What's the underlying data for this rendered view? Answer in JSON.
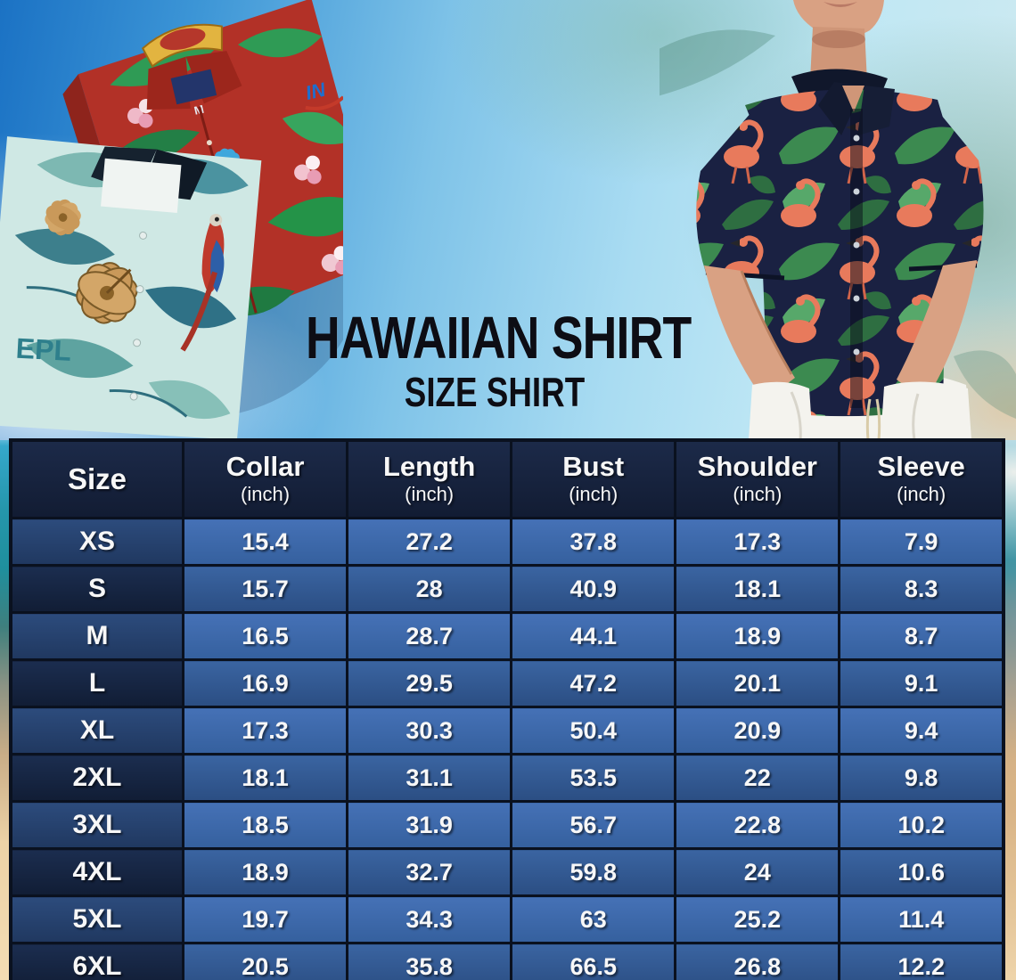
{
  "title": "HAWAIIAN SHIRT",
  "subtitle": "SIZE SHIRT",
  "table": {
    "size_column_header": "Size",
    "unit": "(inch)",
    "measure_columns": [
      "Collar",
      "Length",
      "Bust",
      "Shoulder",
      "Sleeve"
    ],
    "rows": [
      {
        "size": "XS",
        "values": [
          "15.4",
          "27.2",
          "37.8",
          "17.3",
          "7.9"
        ]
      },
      {
        "size": "S",
        "values": [
          "15.7",
          "28",
          "40.9",
          "18.1",
          "8.3"
        ]
      },
      {
        "size": "M",
        "values": [
          "16.5",
          "28.7",
          "44.1",
          "18.9",
          "8.7"
        ]
      },
      {
        "size": "L",
        "values": [
          "16.9",
          "29.5",
          "47.2",
          "20.1",
          "9.1"
        ]
      },
      {
        "size": "XL",
        "values": [
          "17.3",
          "30.3",
          "50.4",
          "20.9",
          "9.4"
        ]
      },
      {
        "size": "2XL",
        "values": [
          "18.1",
          "31.1",
          "53.5",
          "22",
          "9.8"
        ]
      },
      {
        "size": "3XL",
        "values": [
          "18.5",
          "31.9",
          "56.7",
          "22.8",
          "10.2"
        ]
      },
      {
        "size": "4XL",
        "values": [
          "18.9",
          "32.7",
          "59.8",
          "24",
          "10.6"
        ]
      },
      {
        "size": "5XL",
        "values": [
          "19.7",
          "34.3",
          "63",
          "25.2",
          "11.4"
        ]
      },
      {
        "size": "6XL",
        "values": [
          "20.5",
          "35.8",
          "66.5",
          "26.8",
          "12.2"
        ]
      }
    ]
  },
  "photo_texts": {
    "red_shirt_tag": "M",
    "red_shirt_logo": "IN",
    "teal_shirt_print": "EPL"
  },
  "colors": {
    "header_bg": "#16213a",
    "row_light_value_bg": "#3c69ac",
    "row_dark_value_bg": "#30548a",
    "row_light_size_bg": "#26416b",
    "row_dark_size_bg": "#14233d",
    "table_border": "#0a111f",
    "table_text": "#f7f7f7",
    "title_color": "#0d0d14",
    "sky_blue": "#7fc3e8",
    "sand": "#ecd2a6"
  },
  "chart_data": {
    "type": "table",
    "title": "Hawaiian Shirt Size Shirt",
    "columns": [
      "Size",
      "Collar (inch)",
      "Length (inch)",
      "Bust (inch)",
      "Shoulder (inch)",
      "Sleeve (inch)"
    ],
    "rows": [
      [
        "XS",
        15.4,
        27.2,
        37.8,
        17.3,
        7.9
      ],
      [
        "S",
        15.7,
        28,
        40.9,
        18.1,
        8.3
      ],
      [
        "M",
        16.5,
        28.7,
        44.1,
        18.9,
        8.7
      ],
      [
        "L",
        16.9,
        29.5,
        47.2,
        20.1,
        9.1
      ],
      [
        "XL",
        17.3,
        30.3,
        50.4,
        20.9,
        9.4
      ],
      [
        "2XL",
        18.1,
        31.1,
        53.5,
        22,
        9.8
      ],
      [
        "3XL",
        18.5,
        31.9,
        56.7,
        22.8,
        10.2
      ],
      [
        "4XL",
        18.9,
        32.7,
        59.8,
        24,
        10.6
      ],
      [
        "5XL",
        19.7,
        34.3,
        63,
        25.2,
        11.4
      ],
      [
        "6XL",
        20.5,
        35.8,
        66.5,
        26.8,
        12.2
      ]
    ]
  }
}
